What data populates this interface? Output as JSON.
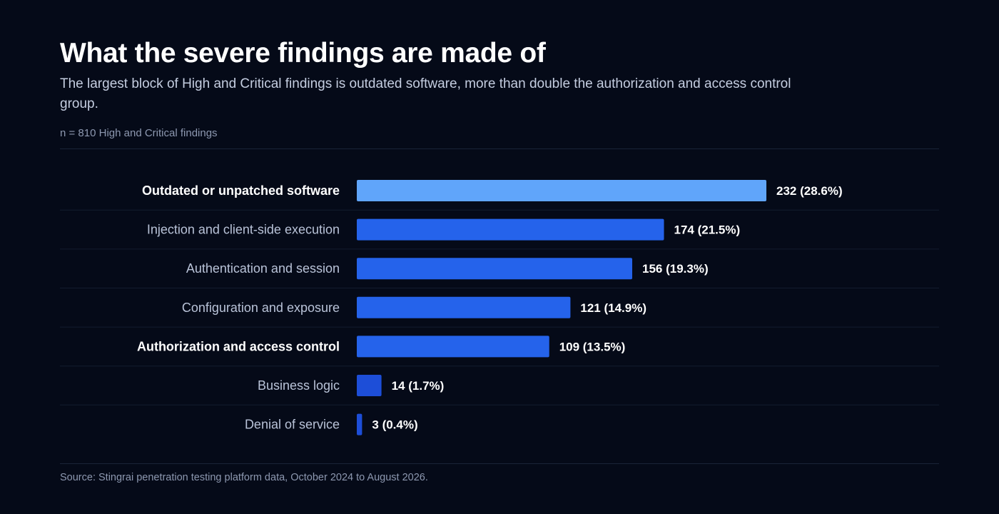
{
  "header": {
    "title": "What the severe findings are made of",
    "subtitle": "The largest block of High and Critical findings is outdated software, more than double the authorization and access control group.",
    "note": "n = 810 High and Critical findings"
  },
  "footer": {
    "source": "Source: Stingrai penetration testing platform data, October 2024 to August 2026."
  },
  "colors": {
    "highlight_bar": "#60a5fa",
    "primary_bar": "#2563eb",
    "small_bar": "#1d4ed8",
    "label_emphasis": "#ffffff",
    "label_default": "#b9c3d8",
    "value_label": "#ffffff",
    "row_divider": "#131c2e"
  },
  "chart_data": {
    "type": "bar",
    "orientation": "horizontal",
    "title": "What the severe findings are made of",
    "subtitle": "The largest block of High and Critical findings is outdated software, more than double the authorization and access control group.",
    "total": 810,
    "categories": [
      "Outdated or unpatched software",
      "Injection and client-side execution",
      "Authentication and session",
      "Configuration and exposure",
      "Authorization and access control",
      "Business logic",
      "Denial of service"
    ],
    "values": [
      232,
      174,
      156,
      121,
      109,
      14,
      3
    ],
    "percents": [
      28.6,
      21.5,
      19.3,
      14.9,
      13.5,
      1.7,
      0.4
    ],
    "value_labels": [
      "232 (28.6%)",
      "174 (21.5%)",
      "156 (19.3%)",
      "121 (14.9%)",
      "109 (13.5%)",
      "14 (1.7%)",
      "3 (0.4%)"
    ],
    "emphasized": [
      true,
      false,
      false,
      false,
      true,
      false,
      false
    ],
    "highlighted": [
      true,
      false,
      false,
      false,
      false,
      false,
      false
    ],
    "xlim": [
      0,
      232
    ],
    "grid": false,
    "legend": "none"
  }
}
